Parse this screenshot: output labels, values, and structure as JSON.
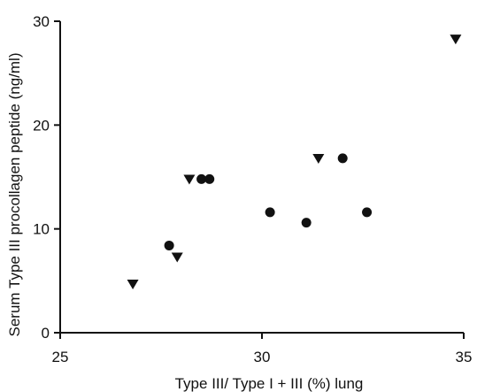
{
  "chart_data": {
    "type": "scatter",
    "title": "",
    "xlabel": "Type III/ Type I + III (%) lung",
    "ylabel": "Serum Type III procollagen peptide (ng/ml)",
    "xlim": [
      25,
      35
    ],
    "ylim": [
      0,
      30
    ],
    "xticks": [
      25,
      30,
      35
    ],
    "yticks": [
      0,
      10,
      20,
      30
    ],
    "xtick_labels": [
      "25",
      "30",
      "35"
    ],
    "ytick_labels": [
      "0",
      "10",
      "20",
      "30"
    ],
    "grid": false,
    "legend": "none",
    "series": [
      {
        "marker": "triangle-down",
        "color": "#111111",
        "points": [
          {
            "x": 26.8,
            "y": 4.7
          },
          {
            "x": 27.9,
            "y": 7.3
          },
          {
            "x": 28.2,
            "y": 14.8
          },
          {
            "x": 31.4,
            "y": 16.8
          },
          {
            "x": 34.8,
            "y": 28.3
          }
        ]
      },
      {
        "marker": "circle",
        "color": "#111111",
        "points": [
          {
            "x": 27.7,
            "y": 8.4
          },
          {
            "x": 28.5,
            "y": 14.8
          },
          {
            "x": 28.7,
            "y": 14.8
          },
          {
            "x": 30.2,
            "y": 11.6
          },
          {
            "x": 31.1,
            "y": 10.6
          },
          {
            "x": 32.0,
            "y": 16.8
          },
          {
            "x": 32.6,
            "y": 11.6
          }
        ]
      }
    ]
  }
}
